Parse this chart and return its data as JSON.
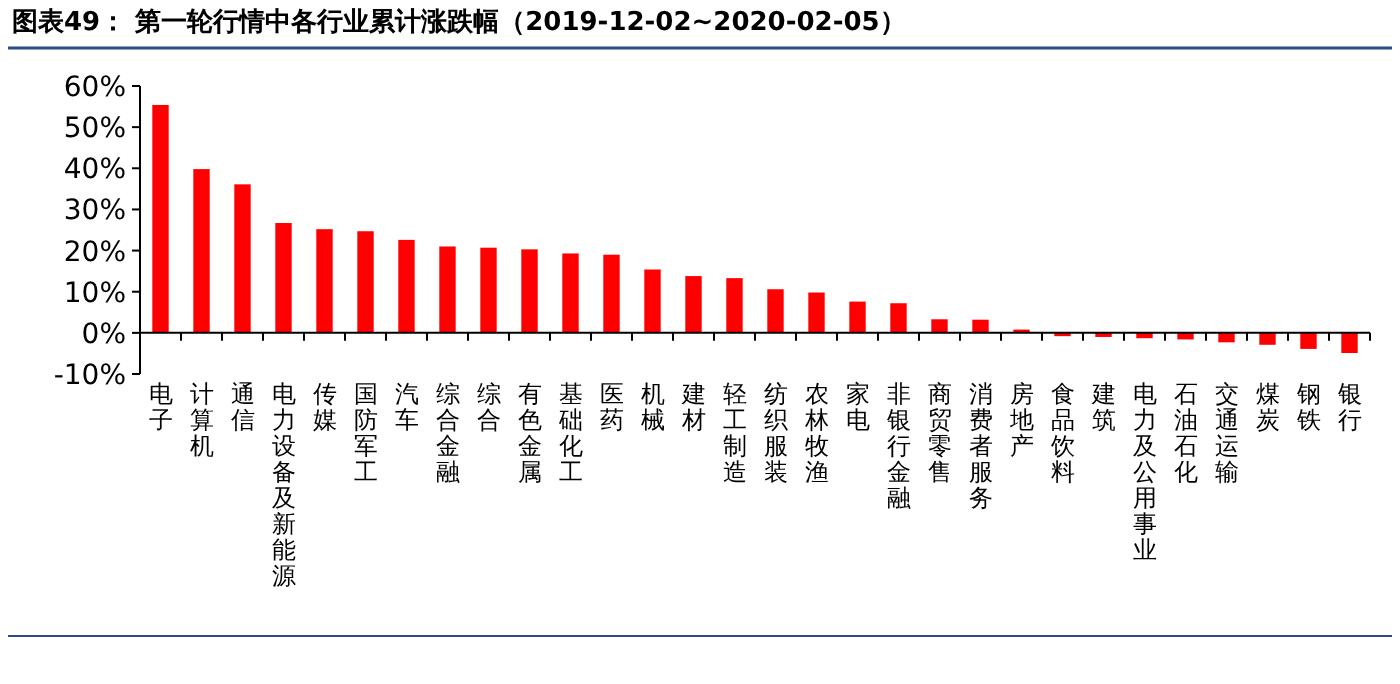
{
  "chart_data": {
    "type": "bar",
    "title": "图表49：  第一轮行情中各行业累计涨跌幅（2019-12-02~2020-02-05）",
    "categories": [
      "电子",
      "计算机",
      "通信",
      "电力设备及新能源",
      "传媒",
      "国防军工",
      "汽车",
      "综合金融",
      "综合",
      "有色金属",
      "基础化工",
      "医药",
      "机械",
      "建材",
      "轻工制造",
      "纺织服装",
      "农林牧渔",
      "家电",
      "非银行金融",
      "商贸零售",
      "消费者服务",
      "房地产",
      "食品饮料",
      "建筑",
      "电力及公用事业",
      "石油石化",
      "交通运输",
      "煤炭",
      "钢铁",
      "银行"
    ],
    "values": [
      55.4,
      39.8,
      36.1,
      26.7,
      25.2,
      24.7,
      22.6,
      21.0,
      20.7,
      20.3,
      19.3,
      19.0,
      15.4,
      13.8,
      13.3,
      10.6,
      9.8,
      7.6,
      7.2,
      3.3,
      3.2,
      0.8,
      -0.8,
      -1.0,
      -1.3,
      -1.6,
      -2.3,
      -2.9,
      -3.9,
      -4.9
    ],
    "color": "#ff0000",
    "ylim": [
      -10,
      60
    ],
    "yticks": [
      {
        "value": -10,
        "label": "-10%"
      },
      {
        "value": 0,
        "label": "0%"
      },
      {
        "value": 10,
        "label": "10%"
      },
      {
        "value": 20,
        "label": "20%"
      },
      {
        "value": 30,
        "label": "30%"
      },
      {
        "value": 40,
        "label": "40%"
      },
      {
        "value": 50,
        "label": "50%"
      },
      {
        "value": 60,
        "label": "60%"
      }
    ],
    "grid": false
  }
}
